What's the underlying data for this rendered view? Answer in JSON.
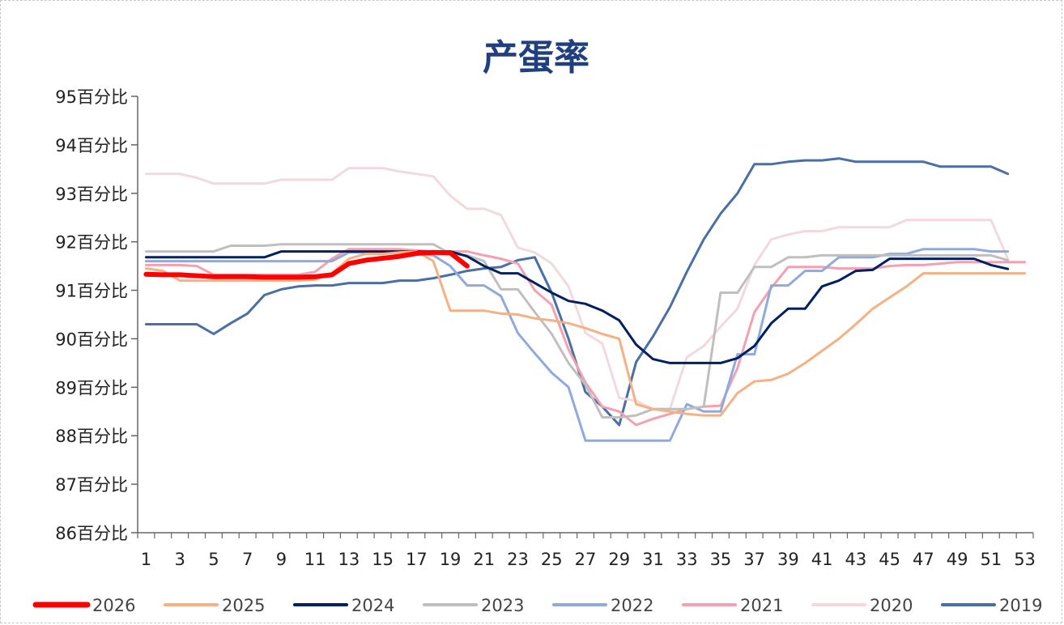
{
  "chart_data": {
    "type": "line",
    "title": "产蛋率",
    "y_tick_labels": [
      "86百分比",
      "87百分比",
      "88百分比",
      "89百分比",
      "90百分比",
      "91百分比",
      "92百分比",
      "93百分比",
      "94百分比",
      "95百分比"
    ],
    "y_ticks": [
      86,
      87,
      88,
      89,
      90,
      91,
      92,
      93,
      94,
      95
    ],
    "ylim": [
      86,
      95
    ],
    "xlim": [
      1,
      53
    ],
    "x_ticks": [
      1,
      3,
      5,
      7,
      9,
      11,
      13,
      15,
      17,
      19,
      21,
      23,
      25,
      27,
      29,
      31,
      33,
      35,
      37,
      39,
      41,
      43,
      45,
      47,
      49,
      51,
      53
    ],
    "grid": false,
    "legend": "bottom",
    "series": [
      {
        "name": "2026",
        "color": "#ff0000",
        "width": 6,
        "x": [
          1,
          2,
          3,
          4,
          5,
          6,
          7,
          8,
          9,
          10,
          11,
          12,
          13,
          14,
          15,
          16,
          17,
          18,
          19,
          20
        ],
        "values": [
          91.33,
          91.32,
          91.32,
          91.3,
          91.28,
          91.28,
          91.28,
          91.27,
          91.27,
          91.27,
          91.28,
          91.32,
          91.55,
          91.62,
          91.66,
          91.7,
          91.76,
          91.78,
          91.77,
          91.5
        ]
      },
      {
        "name": "2025",
        "color": "#f4b183",
        "width": 3,
        "x": [
          1,
          2,
          3,
          4,
          5,
          6,
          7,
          8,
          9,
          10,
          11,
          12,
          13,
          14,
          15,
          16,
          17,
          18,
          19,
          20,
          21,
          22,
          23,
          24,
          25,
          26,
          27,
          28,
          29,
          30,
          31,
          32,
          33,
          34,
          35,
          36,
          37,
          38,
          39,
          40,
          41,
          42,
          43,
          44,
          45,
          46,
          47,
          48,
          49,
          50,
          51,
          52,
          53
        ],
        "values": [
          91.45,
          91.4,
          91.2,
          91.2,
          91.2,
          91.2,
          91.2,
          91.2,
          91.2,
          91.2,
          91.22,
          91.35,
          91.65,
          91.75,
          91.75,
          91.78,
          91.8,
          91.6,
          90.58,
          90.58,
          90.58,
          90.52,
          90.5,
          90.42,
          90.38,
          90.32,
          90.22,
          90.1,
          90.0,
          88.65,
          88.55,
          88.5,
          88.45,
          88.42,
          88.42,
          88.88,
          89.12,
          89.15,
          89.28,
          89.5,
          89.75,
          90.0,
          90.3,
          90.62,
          90.85,
          91.08,
          91.35,
          91.35,
          91.35,
          91.35,
          91.35,
          91.35,
          91.35
        ]
      },
      {
        "name": "2024",
        "color": "#002060",
        "width": 3,
        "x": [
          1,
          2,
          3,
          4,
          5,
          6,
          7,
          8,
          9,
          10,
          11,
          12,
          13,
          14,
          15,
          16,
          17,
          18,
          19,
          20,
          21,
          22,
          23,
          24,
          25,
          26,
          27,
          28,
          29,
          30,
          31,
          32,
          33,
          34,
          35,
          36,
          37,
          38,
          39,
          40,
          41,
          42,
          43,
          44,
          45,
          46,
          47,
          48,
          49,
          50,
          51,
          52
        ],
        "values": [
          91.68,
          91.68,
          91.68,
          91.68,
          91.68,
          91.68,
          91.68,
          91.68,
          91.8,
          91.8,
          91.8,
          91.8,
          91.8,
          91.8,
          91.8,
          91.8,
          91.8,
          91.8,
          91.8,
          91.7,
          91.5,
          91.35,
          91.35,
          91.15,
          90.95,
          90.78,
          90.72,
          90.58,
          90.38,
          89.88,
          89.58,
          89.5,
          89.5,
          89.5,
          89.5,
          89.6,
          89.85,
          90.32,
          90.62,
          90.62,
          91.08,
          91.2,
          91.4,
          91.42,
          91.65,
          91.65,
          91.65,
          91.65,
          91.65,
          91.65,
          91.52,
          91.44
        ]
      },
      {
        "name": "2023",
        "color": "#bfbfbf",
        "width": 3,
        "x": [
          1,
          2,
          3,
          4,
          5,
          6,
          7,
          8,
          9,
          10,
          11,
          12,
          13,
          14,
          15,
          16,
          17,
          18,
          19,
          20,
          21,
          22,
          23,
          24,
          25,
          26,
          27,
          28,
          29,
          30,
          31,
          32,
          33,
          34,
          35,
          36,
          37,
          38,
          39,
          40,
          41,
          42,
          43,
          44,
          45,
          46,
          47,
          48,
          49,
          50,
          51,
          52
        ],
        "values": [
          91.8,
          91.8,
          91.8,
          91.8,
          91.8,
          91.92,
          91.92,
          91.92,
          91.95,
          91.95,
          91.95,
          91.95,
          91.95,
          91.95,
          91.95,
          91.95,
          91.95,
          91.95,
          91.75,
          91.72,
          91.6,
          91.02,
          91.02,
          90.55,
          90.1,
          89.5,
          89.05,
          88.38,
          88.38,
          88.42,
          88.55,
          88.55,
          88.55,
          88.6,
          90.95,
          90.95,
          91.48,
          91.48,
          91.68,
          91.68,
          91.72,
          91.72,
          91.72,
          91.72,
          91.72,
          91.72,
          91.72,
          91.72,
          91.72,
          91.72,
          91.72,
          91.62
        ]
      },
      {
        "name": "2022",
        "color": "#8faadc",
        "width": 3,
        "x": [
          1,
          2,
          3,
          4,
          5,
          6,
          7,
          8,
          9,
          10,
          11,
          12,
          13,
          14,
          15,
          16,
          17,
          18,
          19,
          20,
          21,
          22,
          23,
          24,
          25,
          26,
          27,
          28,
          29,
          30,
          31,
          32,
          33,
          34,
          35,
          36,
          37,
          38,
          39,
          40,
          41,
          42,
          43,
          44,
          45,
          46,
          47,
          48,
          49,
          50,
          51,
          52
        ],
        "values": [
          91.6,
          91.6,
          91.6,
          91.6,
          91.6,
          91.6,
          91.6,
          91.6,
          91.6,
          91.6,
          91.6,
          91.6,
          91.78,
          91.78,
          91.78,
          91.78,
          91.78,
          91.72,
          91.5,
          91.1,
          91.1,
          90.88,
          90.12,
          89.7,
          89.3,
          89.0,
          87.9,
          87.9,
          87.9,
          87.9,
          87.9,
          87.9,
          88.65,
          88.5,
          88.5,
          89.68,
          89.68,
          91.1,
          91.1,
          91.4,
          91.4,
          91.68,
          91.68,
          91.68,
          91.75,
          91.75,
          91.85,
          91.85,
          91.85,
          91.85,
          91.8,
          91.8
        ]
      },
      {
        "name": "2021",
        "color": "#f4a0b0",
        "width": 3,
        "x": [
          1,
          2,
          3,
          4,
          5,
          6,
          7,
          8,
          9,
          10,
          11,
          12,
          13,
          14,
          15,
          16,
          17,
          18,
          19,
          20,
          21,
          22,
          23,
          24,
          25,
          26,
          27,
          28,
          29,
          30,
          31,
          32,
          33,
          34,
          35,
          36,
          37,
          38,
          39,
          40,
          41,
          42,
          43,
          44,
          45,
          46,
          47,
          48,
          49,
          50,
          51,
          52,
          53
        ],
        "values": [
          91.52,
          91.52,
          91.52,
          91.5,
          91.32,
          91.32,
          91.32,
          91.32,
          91.32,
          91.32,
          91.38,
          91.65,
          91.85,
          91.85,
          91.85,
          91.85,
          91.82,
          91.8,
          91.8,
          91.8,
          91.72,
          91.65,
          91.55,
          91.0,
          90.7,
          89.78,
          89.1,
          88.6,
          88.5,
          88.22,
          88.35,
          88.45,
          88.55,
          88.6,
          88.62,
          89.4,
          90.55,
          91.05,
          91.48,
          91.48,
          91.48,
          91.45,
          91.45,
          91.45,
          91.5,
          91.52,
          91.52,
          91.55,
          91.58,
          91.58,
          91.58,
          91.58,
          91.58
        ]
      },
      {
        "name": "2020",
        "color": "#f2d9dd",
        "width": 3,
        "x": [
          1,
          2,
          3,
          4,
          5,
          6,
          7,
          8,
          9,
          10,
          11,
          12,
          13,
          14,
          15,
          16,
          17,
          18,
          19,
          20,
          21,
          22,
          23,
          24,
          25,
          26,
          27,
          28,
          29,
          30,
          31,
          32,
          33,
          34,
          35,
          36,
          37,
          38,
          39,
          40,
          41,
          42,
          43,
          44,
          45,
          46,
          47,
          48,
          49,
          50,
          51,
          52
        ],
        "values": [
          93.4,
          93.4,
          93.4,
          93.32,
          93.2,
          93.2,
          93.2,
          93.2,
          93.28,
          93.28,
          93.28,
          93.28,
          93.52,
          93.52,
          93.52,
          93.45,
          93.4,
          93.35,
          92.95,
          92.68,
          92.68,
          92.55,
          91.88,
          91.78,
          91.55,
          91.08,
          90.12,
          89.9,
          88.78,
          88.72,
          88.55,
          88.55,
          89.62,
          89.85,
          90.25,
          90.62,
          91.52,
          92.05,
          92.15,
          92.22,
          92.22,
          92.3,
          92.3,
          92.3,
          92.3,
          92.45,
          92.45,
          92.45,
          92.45,
          92.45,
          92.45,
          91.65
        ]
      },
      {
        "name": "2019",
        "color": "#4a6fa5",
        "width": 3,
        "x": [
          1,
          2,
          3,
          4,
          5,
          6,
          7,
          8,
          9,
          10,
          11,
          12,
          13,
          14,
          15,
          16,
          17,
          18,
          19,
          20,
          21,
          22,
          23,
          24,
          25,
          26,
          27,
          28,
          29,
          30,
          31,
          32,
          33,
          34,
          35,
          36,
          37,
          38,
          39,
          40,
          41,
          42,
          43,
          44,
          45,
          46,
          47,
          48,
          49,
          50,
          51,
          52
        ],
        "values": [
          90.3,
          90.3,
          90.3,
          90.3,
          90.1,
          90.32,
          90.52,
          90.9,
          91.02,
          91.08,
          91.1,
          91.1,
          91.15,
          91.15,
          91.15,
          91.2,
          91.2,
          91.25,
          91.32,
          91.4,
          91.45,
          91.48,
          91.62,
          91.68,
          90.95,
          90.0,
          88.9,
          88.6,
          88.22,
          89.52,
          90.05,
          90.65,
          91.38,
          92.05,
          92.58,
          93.0,
          93.6,
          93.6,
          93.65,
          93.68,
          93.68,
          93.72,
          93.65,
          93.65,
          93.65,
          93.65,
          93.65,
          93.55,
          93.55,
          93.55,
          93.55,
          93.4
        ]
      }
    ]
  }
}
